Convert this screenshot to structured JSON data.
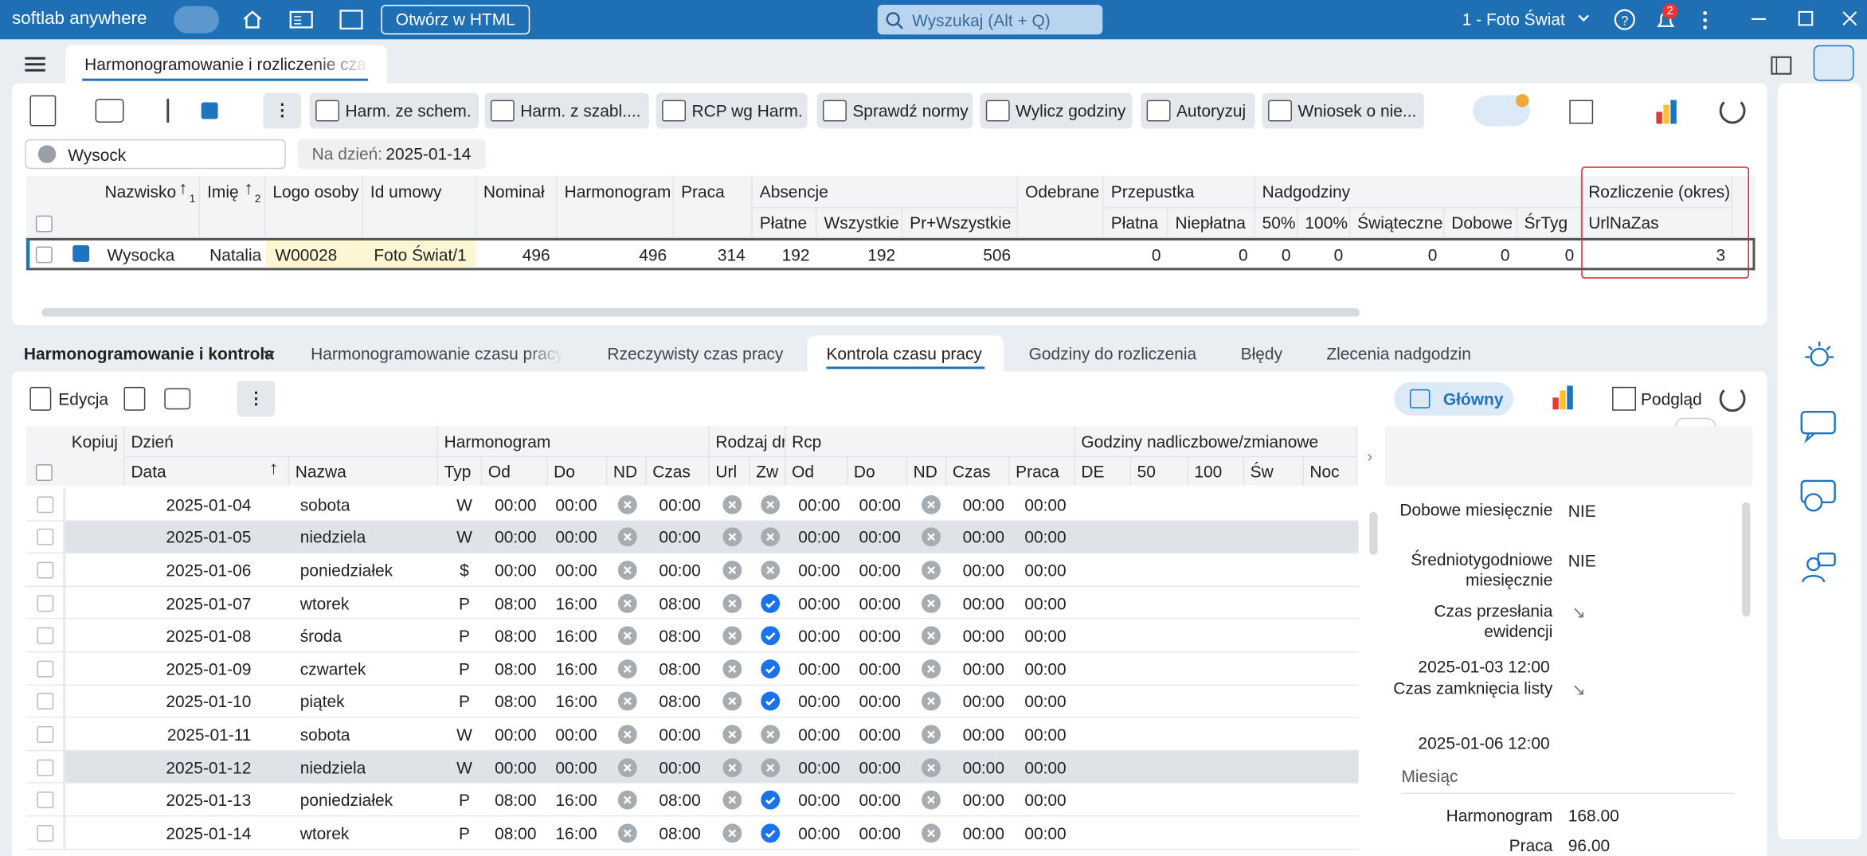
{
  "header": {
    "app_name": "softlab anywhere",
    "open_html": "Otwórz w HTML",
    "search": "Wyszukaj (Alt + Q)",
    "company": "1 - Foto Świat",
    "notifications": "2"
  },
  "tab": "Harmonogramowanie i rozliczenie cza",
  "toolbar": [
    "Harm. ze schem.",
    "Harm. z szabl....",
    "RCP wg Harm.",
    "Sprawdź normy",
    "Wylicz godziny",
    "Autoryzuj",
    "Wniosek o nie..."
  ],
  "filter": {
    "search": "Wysock",
    "date_label": "Na dzień:",
    "date": "2025-01-14"
  },
  "top_grid": {
    "headers": [
      {
        "label": "Nazwisko",
        "sort": "1"
      },
      {
        "label": "Imię",
        "sort": "2"
      },
      {
        "label": "Logo osoby"
      },
      {
        "label": "Id umowy"
      },
      {
        "label": "Nominał"
      },
      {
        "label": "Harmonogram"
      },
      {
        "label": "Praca"
      },
      {
        "label": "Absencje",
        "sub": [
          "Płatne",
          "Wszystkie",
          "Pr+Wszystkie"
        ]
      },
      {
        "label": "Odebrane"
      },
      {
        "label": "Przepustka",
        "sub": [
          "Płatna",
          "Niepłatna"
        ]
      },
      {
        "label": "Nadgodziny",
        "sub": [
          "50%",
          "100%",
          "Świąteczne",
          "Dobowe",
          "ŚrTyg"
        ]
      },
      {
        "label": "Rozliczenie (okres)",
        "sub": [
          "UrlNaZas"
        ]
      }
    ],
    "row": [
      "Wysocka",
      "Natalia",
      "W00028",
      "Foto Świat/1",
      496,
      496,
      314,
      192,
      192,
      506,
      null,
      0,
      0,
      0,
      0,
      0,
      0,
      0,
      3
    ]
  },
  "bottom_section": "Harmonogramowanie i kontrola",
  "bottom_tabs": [
    "Harmonogramowanie czasu pracy",
    "Rzeczywisty czas pracy",
    "Kontrola czasu pracy",
    "Godziny do rozliczenia",
    "Błędy",
    "Zlecenia nadgodzin"
  ],
  "active_tab": 2,
  "bottom_toolbar": {
    "edit": "Edycja",
    "view": "Główny",
    "preview": "Podgląd"
  },
  "grid": {
    "groups": [
      "Kopiuj",
      "Dzień",
      "Harmonogram",
      "Rodzaj dr",
      "Rcp",
      "Godziny nadliczbowe/zmianowe"
    ],
    "columns": [
      "Data",
      "Nazwa",
      "Typ",
      "Od",
      "Do",
      "ND",
      "Czas",
      "Url",
      "Zw",
      "Od",
      "Do",
      "ND",
      "Czas",
      "Praca",
      "DE",
      "50",
      "100",
      "Św",
      "Noc"
    ],
    "rows": [
      {
        "date": "2025-01-04",
        "day": "sobota",
        "typ": "W",
        "od": "00:00",
        "do": "00:00",
        "czas": "00:00",
        "zw": false,
        "rcp_od": "00:00",
        "rcp_do": "00:00",
        "rcp_czas": "00:00",
        "praca": "00:00",
        "shaded": false
      },
      {
        "date": "2025-01-05",
        "day": "niedziela",
        "typ": "W",
        "od": "00:00",
        "do": "00:00",
        "czas": "00:00",
        "zw": false,
        "rcp_od": "00:00",
        "rcp_do": "00:00",
        "rcp_czas": "00:00",
        "praca": "00:00",
        "shaded": true
      },
      {
        "date": "2025-01-06",
        "day": "poniedziałek",
        "typ": "$",
        "od": "00:00",
        "do": "00:00",
        "czas": "00:00",
        "zw": false,
        "rcp_od": "00:00",
        "rcp_do": "00:00",
        "rcp_czas": "00:00",
        "praca": "00:00",
        "shaded": false
      },
      {
        "date": "2025-01-07",
        "day": "wtorek",
        "typ": "P",
        "od": "08:00",
        "do": "16:00",
        "czas": "08:00",
        "zw": true,
        "rcp_od": "00:00",
        "rcp_do": "00:00",
        "rcp_czas": "00:00",
        "praca": "00:00",
        "shaded": false
      },
      {
        "date": "2025-01-08",
        "day": "środa",
        "typ": "P",
        "od": "08:00",
        "do": "16:00",
        "czas": "08:00",
        "zw": true,
        "rcp_od": "00:00",
        "rcp_do": "00:00",
        "rcp_czas": "00:00",
        "praca": "00:00",
        "shaded": false
      },
      {
        "date": "2025-01-09",
        "day": "czwartek",
        "typ": "P",
        "od": "08:00",
        "do": "16:00",
        "czas": "08:00",
        "zw": true,
        "rcp_od": "00:00",
        "rcp_do": "00:00",
        "rcp_czas": "00:00",
        "praca": "00:00",
        "shaded": false
      },
      {
        "date": "2025-01-10",
        "day": "piątek",
        "typ": "P",
        "od": "08:00",
        "do": "16:00",
        "czas": "08:00",
        "zw": true,
        "rcp_od": "00:00",
        "rcp_do": "00:00",
        "rcp_czas": "00:00",
        "praca": "00:00",
        "shaded": false
      },
      {
        "date": "2025-01-11",
        "day": "sobota",
        "typ": "W",
        "od": "00:00",
        "do": "00:00",
        "czas": "00:00",
        "zw": false,
        "rcp_od": "00:00",
        "rcp_do": "00:00",
        "rcp_czas": "00:00",
        "praca": "00:00",
        "shaded": false
      },
      {
        "date": "2025-01-12",
        "day": "niedziela",
        "typ": "W",
        "od": "00:00",
        "do": "00:00",
        "czas": "00:00",
        "zw": false,
        "rcp_od": "00:00",
        "rcp_do": "00:00",
        "rcp_czas": "00:00",
        "praca": "00:00",
        "shaded": true
      },
      {
        "date": "2025-01-13",
        "day": "poniedziałek",
        "typ": "P",
        "od": "08:00",
        "do": "16:00",
        "czas": "08:00",
        "zw": true,
        "rcp_od": "00:00",
        "rcp_do": "00:00",
        "rcp_czas": "00:00",
        "praca": "00:00",
        "shaded": false
      },
      {
        "date": "2025-01-14",
        "day": "wtorek",
        "typ": "P",
        "od": "08:00",
        "do": "16:00",
        "czas": "08:00",
        "zw": true,
        "rcp_od": "00:00",
        "rcp_do": "00:00",
        "rcp_czas": "00:00",
        "praca": "00:00",
        "shaded": false
      }
    ]
  },
  "details": {
    "fields": [
      {
        "label": "Dobowe miesięcznie",
        "value": "NIE"
      },
      {
        "label": "Średniotygodniowe miesięcznie",
        "value": "NIE"
      },
      {
        "label": "Czas przesłania ewidencji",
        "value": "2025-01-03 12:00"
      },
      {
        "label": "Czas zamknięcia listy",
        "value": "2025-01-06 12:00"
      }
    ],
    "section": "Miesiąc",
    "month": [
      {
        "label": "Harmonogram",
        "value": "168.00"
      },
      {
        "label": "Praca",
        "value": "96.00"
      }
    ]
  }
}
